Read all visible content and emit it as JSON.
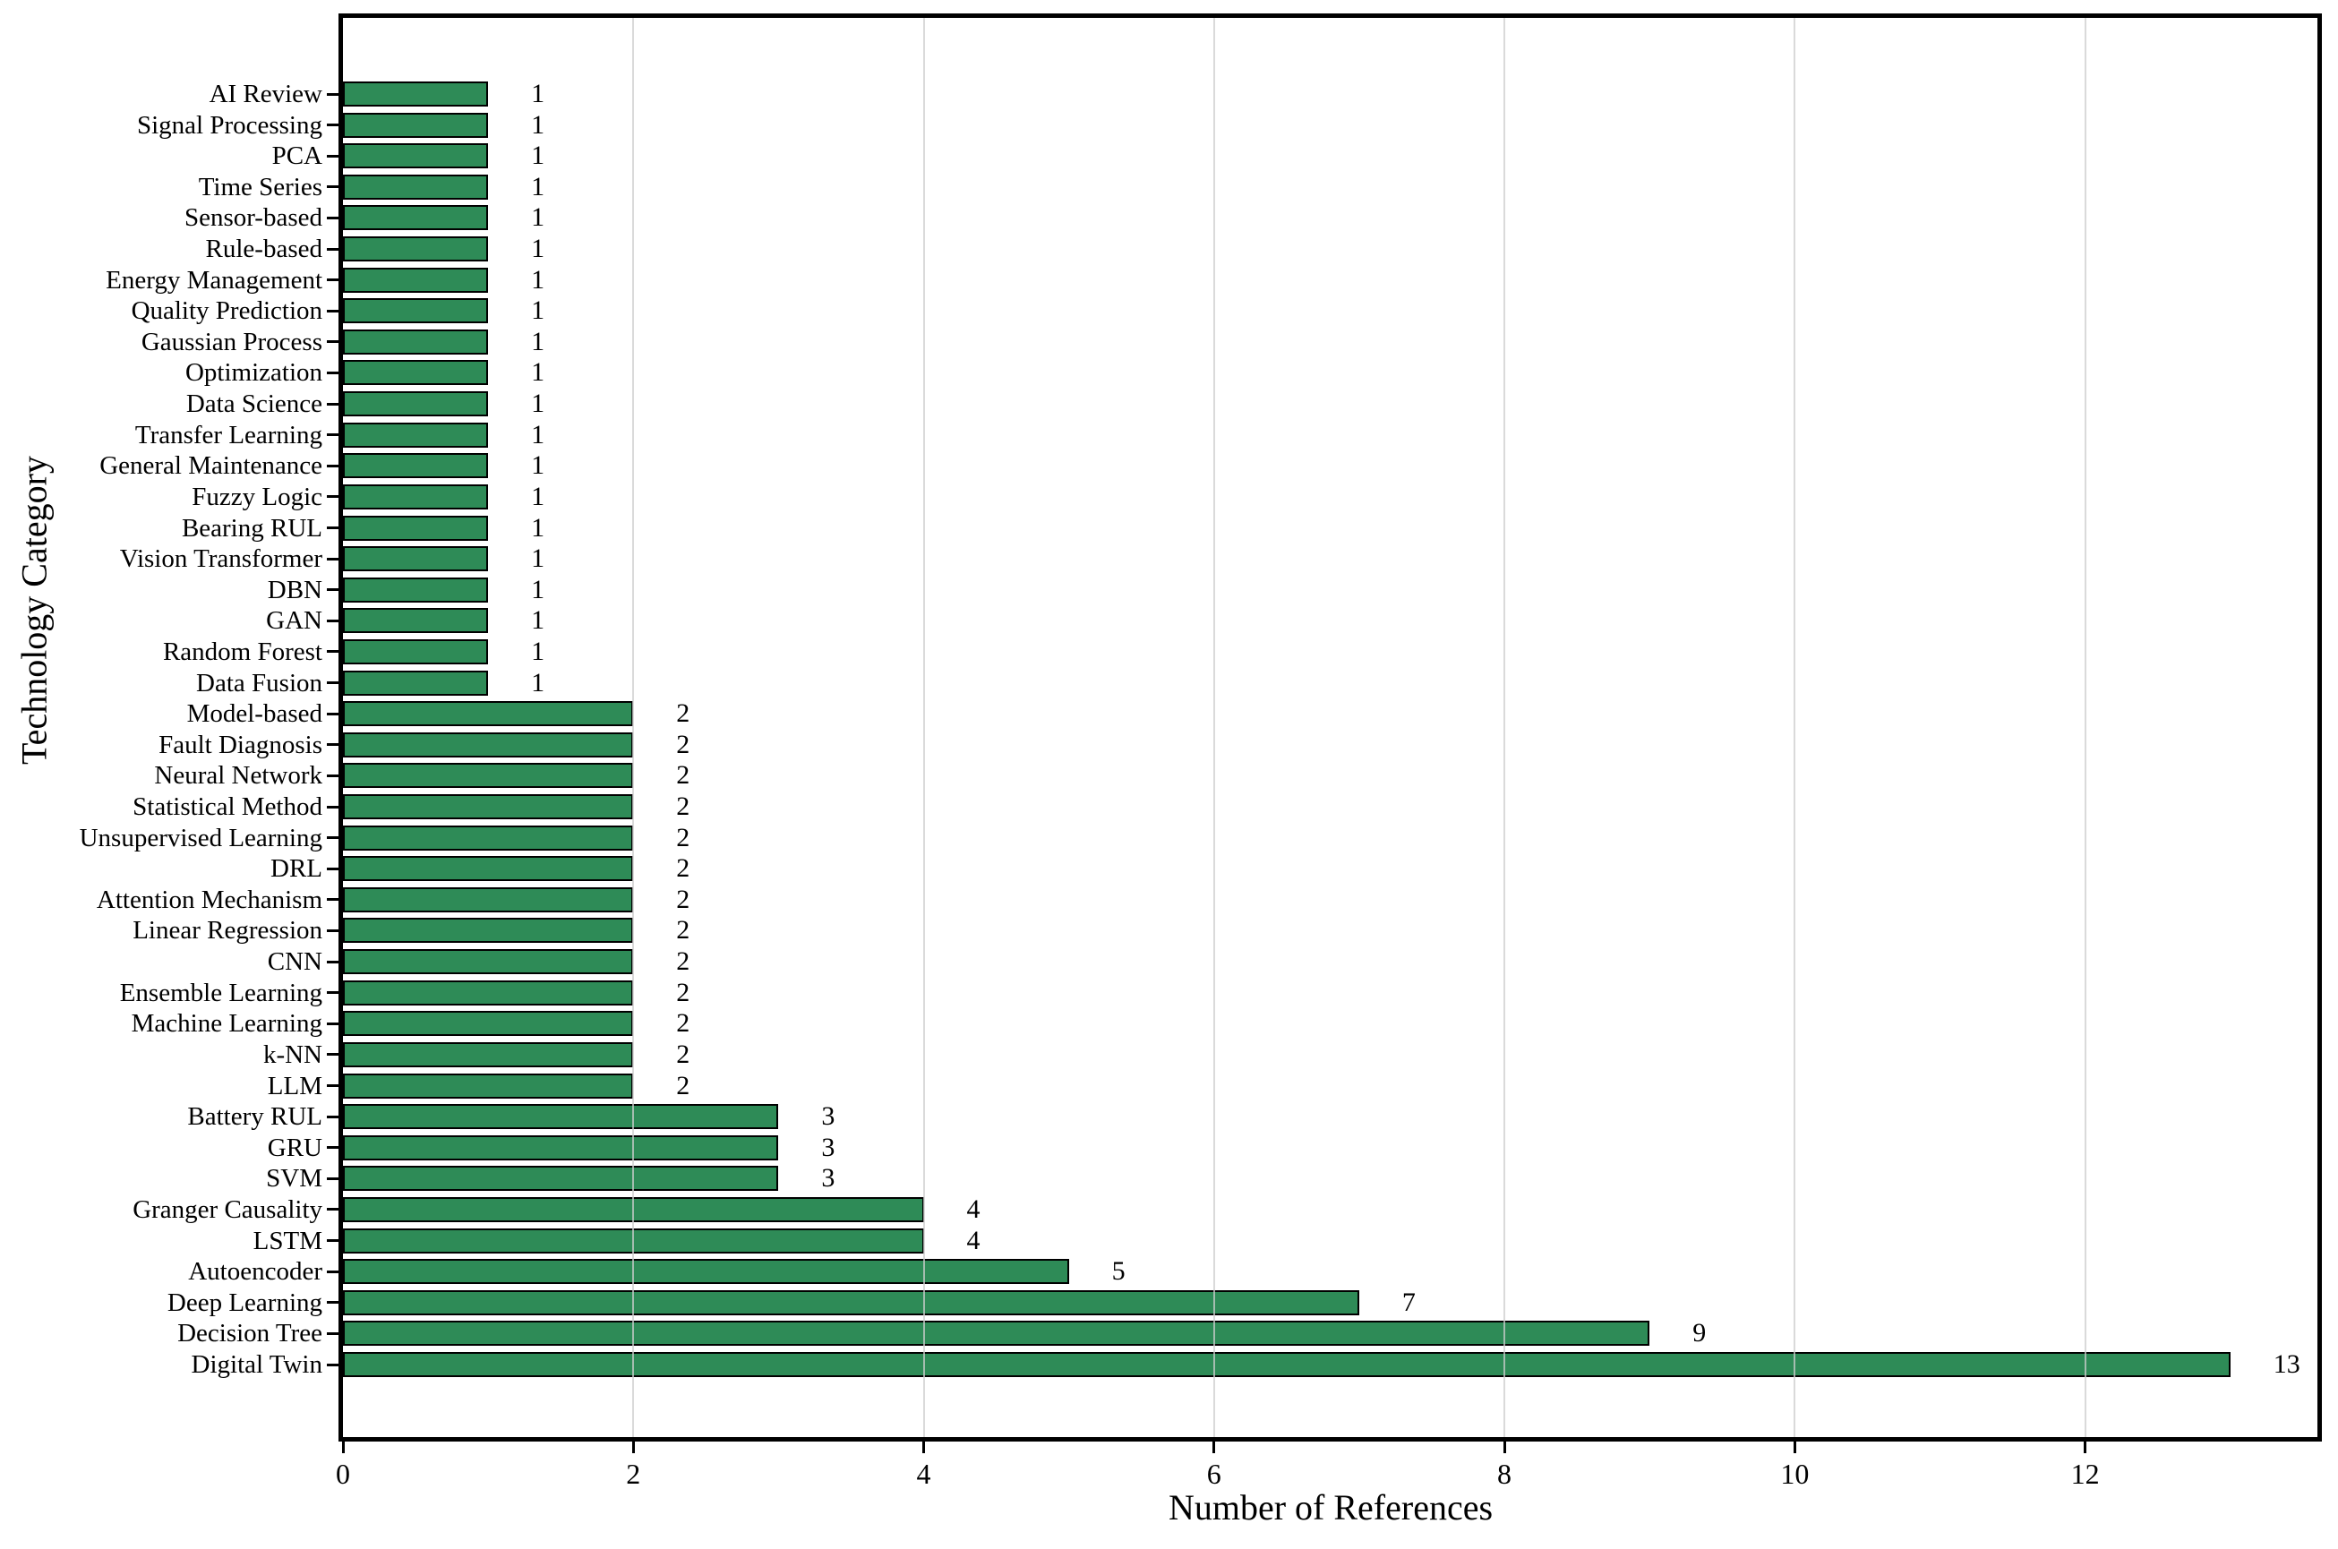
{
  "figure": {
    "background_color": "#ffffff",
    "bar_color": "#2E8B57",
    "bar_edge_color": "#000000",
    "grid_color": "#cdcdcd",
    "spine_color": "#000000",
    "text_color": "#000000"
  },
  "chart_data": {
    "type": "bar",
    "orientation": "horizontal",
    "title": "",
    "xlabel": "Number of References",
    "ylabel": "Technology Category",
    "xlim": [
      0,
      13.6
    ],
    "xticks": [
      0,
      2,
      4,
      6,
      8,
      10,
      12
    ],
    "grid": "vertical",
    "legend": "none",
    "value_labels_shown": true,
    "categories": [
      "AI Review",
      "Signal Processing",
      "PCA",
      "Time Series",
      "Sensor-based",
      "Rule-based",
      "Energy Management",
      "Quality Prediction",
      "Gaussian Process",
      "Optimization",
      "Data Science",
      "Transfer Learning",
      "General Maintenance",
      "Fuzzy Logic",
      "Bearing RUL",
      "Vision Transformer",
      "DBN",
      "GAN",
      "Random Forest",
      "Data Fusion",
      "Model-based",
      "Fault Diagnosis",
      "Neural Network",
      "Statistical Method",
      "Unsupervised Learning",
      "DRL",
      "Attention Mechanism",
      "Linear Regression",
      "CNN",
      "Ensemble Learning",
      "Machine Learning",
      "k-NN",
      "LLM",
      "Battery RUL",
      "GRU",
      "SVM",
      "Granger Causality",
      "LSTM",
      "Autoencoder",
      "Deep Learning",
      "Decision Tree",
      "Digital Twin"
    ],
    "values": [
      1,
      1,
      1,
      1,
      1,
      1,
      1,
      1,
      1,
      1,
      1,
      1,
      1,
      1,
      1,
      1,
      1,
      1,
      1,
      1,
      2,
      2,
      2,
      2,
      2,
      2,
      2,
      2,
      2,
      2,
      2,
      2,
      2,
      3,
      3,
      3,
      4,
      4,
      5,
      7,
      9,
      13
    ]
  }
}
